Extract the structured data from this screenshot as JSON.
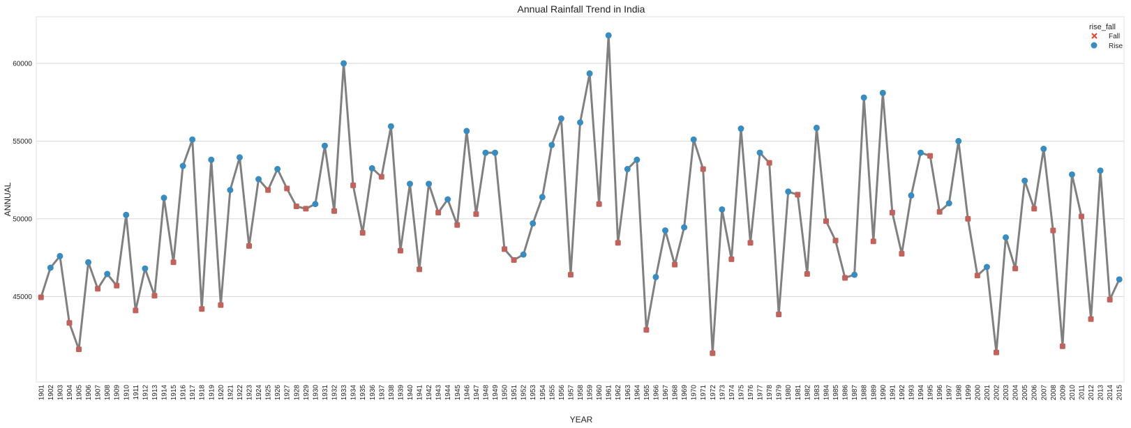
{
  "chart_data": {
    "type": "line",
    "title": "Annual Rainfall Trend in India",
    "xlabel": "YEAR",
    "ylabel": "ANNUAL",
    "ylim": [
      39500,
      63000
    ],
    "yticks": [
      45000,
      50000,
      55000,
      60000
    ],
    "grid": "horizontal",
    "legend": {
      "title": "rise_fall",
      "placement": "top-right",
      "entries": [
        {
          "label": "Fall",
          "marker": "x",
          "color": "#e8432f"
        },
        {
          "label": "Rise",
          "marker": "circle",
          "color": "#3a8bbe"
        }
      ]
    },
    "colors": {
      "line": "#808080",
      "fall": "#c0635c",
      "rise": "#3a8bbe",
      "grid": "#d8d8d8"
    },
    "x": [
      1901,
      1902,
      1903,
      1904,
      1905,
      1906,
      1907,
      1908,
      1909,
      1910,
      1911,
      1912,
      1913,
      1914,
      1915,
      1916,
      1917,
      1918,
      1919,
      1920,
      1921,
      1922,
      1923,
      1924,
      1925,
      1926,
      1927,
      1928,
      1929,
      1930,
      1931,
      1932,
      1933,
      1934,
      1935,
      1936,
      1937,
      1938,
      1939,
      1940,
      1941,
      1942,
      1943,
      1944,
      1945,
      1946,
      1947,
      1948,
      1949,
      1950,
      1951,
      1952,
      1953,
      1954,
      1955,
      1956,
      1957,
      1958,
      1959,
      1960,
      1961,
      1962,
      1963,
      1964,
      1965,
      1966,
      1967,
      1968,
      1969,
      1970,
      1971,
      1972,
      1973,
      1974,
      1975,
      1976,
      1977,
      1978,
      1979,
      1980,
      1981,
      1982,
      1983,
      1984,
      1985,
      1986,
      1987,
      1988,
      1989,
      1990,
      1991,
      1992,
      1993,
      1994,
      1995,
      1996,
      1997,
      1998,
      1999,
      2000,
      2001,
      2002,
      2003,
      2004,
      2005,
      2006,
      2007,
      2008,
      2009,
      2010,
      2011,
      2012,
      2013,
      2014,
      2015
    ],
    "series": [
      {
        "values": [
          44950,
          46850,
          47600,
          43300,
          41600,
          47200,
          45500,
          46450,
          45700,
          50250,
          44100,
          46800,
          45050,
          51350,
          47200,
          53400,
          55100,
          44200,
          53800,
          44450,
          51850,
          53950,
          48250,
          52550,
          51850,
          53200,
          51950,
          50800,
          50650,
          50950,
          54700,
          50500,
          60000,
          52150,
          49100,
          53250,
          52700,
          55950,
          47950,
          52250,
          46750,
          52250,
          50400,
          51250,
          49600,
          55650,
          50300,
          54250,
          54250,
          48050,
          47350,
          47700,
          49700,
          51400,
          54750,
          56450,
          46400,
          56200,
          59350,
          50950,
          61800,
          48450,
          53200,
          53800,
          42850,
          46250,
          49250,
          47050,
          49450,
          55100,
          53200,
          41350,
          50600,
          47400,
          55800,
          48450,
          54250,
          53600,
          43850,
          51750,
          51550,
          46450,
          55850,
          49850,
          48600,
          46200,
          46400,
          57800,
          48550,
          58100,
          50400,
          47750,
          51500,
          54250,
          54050,
          50450,
          51000,
          55000,
          50000,
          46350,
          46900,
          41400,
          48800,
          46800,
          52450,
          50650,
          54500,
          49250,
          41800,
          52850,
          50150,
          43550,
          53100,
          44800,
          46100
        ],
        "direction": [
          "Fall",
          "Rise",
          "Rise",
          "Fall",
          "Fall",
          "Rise",
          "Fall",
          "Rise",
          "Fall",
          "Rise",
          "Fall",
          "Rise",
          "Fall",
          "Rise",
          "Fall",
          "Rise",
          "Rise",
          "Fall",
          "Rise",
          "Fall",
          "Rise",
          "Rise",
          "Fall",
          "Rise",
          "Fall",
          "Rise",
          "Fall",
          "Fall",
          "Fall",
          "Rise",
          "Rise",
          "Fall",
          "Rise",
          "Fall",
          "Fall",
          "Rise",
          "Fall",
          "Rise",
          "Fall",
          "Rise",
          "Fall",
          "Rise",
          "Fall",
          "Rise",
          "Fall",
          "Rise",
          "Fall",
          "Rise",
          "Rise",
          "Fall",
          "Fall",
          "Rise",
          "Rise",
          "Rise",
          "Rise",
          "Rise",
          "Fall",
          "Rise",
          "Rise",
          "Fall",
          "Rise",
          "Fall",
          "Rise",
          "Rise",
          "Fall",
          "Rise",
          "Rise",
          "Fall",
          "Rise",
          "Rise",
          "Fall",
          "Fall",
          "Rise",
          "Fall",
          "Rise",
          "Fall",
          "Rise",
          "Fall",
          "Fall",
          "Rise",
          "Fall",
          "Fall",
          "Rise",
          "Fall",
          "Fall",
          "Fall",
          "Rise",
          "Rise",
          "Fall",
          "Rise",
          "Fall",
          "Fall",
          "Rise",
          "Rise",
          "Fall",
          "Fall",
          "Rise",
          "Rise",
          "Fall",
          "Fall",
          "Rise",
          "Fall",
          "Rise",
          "Fall",
          "Rise",
          "Fall",
          "Rise",
          "Fall",
          "Fall",
          "Rise",
          "Fall",
          "Fall",
          "Rise",
          "Fall",
          "Rise"
        ]
      }
    ]
  }
}
